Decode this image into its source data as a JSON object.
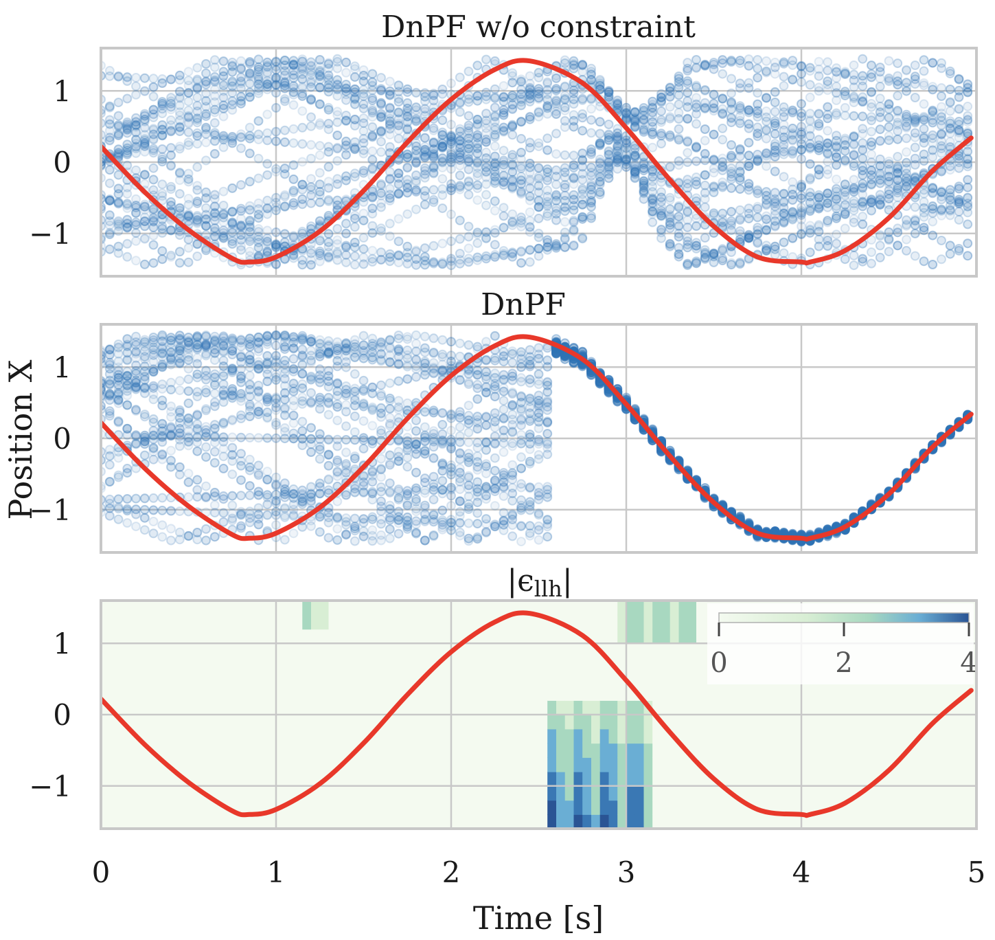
{
  "figure": {
    "xlabel": "Time [s]",
    "ylabel": "Position X"
  },
  "chart_data": [
    {
      "type": "scatter",
      "title": "DnPF w/o constraint",
      "xlim": [
        0,
        5
      ],
      "ylim": [
        -1.6,
        1.6
      ],
      "xticks": [
        0,
        1,
        2,
        3,
        4,
        5
      ],
      "yticks": [
        -1,
        0,
        1
      ],
      "ytick_labels": [
        "−1",
        "0",
        "1"
      ],
      "grid": true,
      "particles": {
        "color": "#2f73b5",
        "n_per_step": 30,
        "time_step": 0.05,
        "spread_x": 1.45,
        "behavior": "diffuse bouncing particles over the full range; weakly attracted to the true trajectory near t=3 and spreading again afterwards"
      },
      "series": [
        {
          "name": "true",
          "color": "#e8382a",
          "x": [
            0,
            0.25,
            0.5,
            0.75,
            0.85,
            1.0,
            1.25,
            1.5,
            1.75,
            2.0,
            2.25,
            2.45,
            2.75,
            3.0,
            3.25,
            3.5,
            3.75,
            4.0,
            4.05,
            4.25,
            4.5,
            4.75,
            4.97
          ],
          "y": [
            0.22,
            -0.42,
            -0.95,
            -1.35,
            -1.4,
            -1.33,
            -0.97,
            -0.4,
            0.28,
            0.88,
            1.3,
            1.42,
            1.11,
            0.48,
            -0.25,
            -0.9,
            -1.33,
            -1.4,
            -1.4,
            -1.24,
            -0.78,
            -0.12,
            0.34
          ]
        }
      ]
    },
    {
      "type": "scatter",
      "title": "DnPF",
      "xlim": [
        0,
        5
      ],
      "ylim": [
        -1.6,
        1.6
      ],
      "xticks": [
        0,
        1,
        2,
        3,
        4,
        5
      ],
      "yticks": [
        -1,
        0,
        1
      ],
      "ytick_labels": [
        "−1",
        "0",
        "1"
      ],
      "grid": true,
      "particles": {
        "color": "#2f73b5",
        "n_per_step": 30,
        "time_step": 0.05,
        "spread_x": 1.45,
        "behavior": "diffuse bouncing particles until about t=2.55, then collapse onto the true trajectory"
      },
      "series": [
        {
          "name": "true",
          "color": "#e8382a",
          "x": [
            0,
            0.25,
            0.5,
            0.75,
            0.85,
            1.0,
            1.25,
            1.5,
            1.75,
            2.0,
            2.25,
            2.45,
            2.75,
            3.0,
            3.25,
            3.5,
            3.75,
            4.0,
            4.05,
            4.25,
            4.5,
            4.75,
            4.97
          ],
          "y": [
            0.22,
            -0.42,
            -0.95,
            -1.35,
            -1.4,
            -1.33,
            -0.97,
            -0.4,
            0.28,
            0.88,
            1.3,
            1.42,
            1.11,
            0.48,
            -0.25,
            -0.9,
            -1.33,
            -1.4,
            -1.4,
            -1.24,
            -0.78,
            -0.12,
            0.34
          ]
        }
      ]
    },
    {
      "type": "heatmap",
      "title": "|ϵ",
      "title_subscript": "llh",
      "title_suffix": "|",
      "xlim": [
        0,
        5
      ],
      "ylim": [
        -1.6,
        1.6
      ],
      "xticks": [
        0,
        1,
        2,
        3,
        4,
        5
      ],
      "yticks": [
        -1,
        0,
        1
      ],
      "ytick_labels": [
        "−1",
        "0",
        "1"
      ],
      "grid": true,
      "colormap": [
        "#f4faf0",
        "#d8eed4",
        "#a8d8c0",
        "#6aaed4",
        "#3a78b4",
        "#2a5494"
      ],
      "colorbar": {
        "range": [
          0,
          4
        ],
        "ticks": [
          0,
          2,
          4
        ],
        "placement": "top-right"
      },
      "hot_regions": [
        {
          "x": [
            1.15,
            1.3
          ],
          "y": [
            1.2,
            1.6
          ],
          "value": 1.6
        },
        {
          "x": [
            2.55,
            3.15
          ],
          "y": [
            -1.6,
            0.1
          ],
          "value": 3.6
        },
        {
          "x": [
            2.95,
            3.4
          ],
          "y": [
            1.0,
            1.6
          ],
          "value": 2.0
        }
      ],
      "series": [
        {
          "name": "true",
          "color": "#e8382a",
          "x": [
            0,
            0.25,
            0.5,
            0.75,
            0.85,
            1.0,
            1.25,
            1.5,
            1.75,
            2.0,
            2.25,
            2.45,
            2.75,
            3.0,
            3.25,
            3.5,
            3.75,
            4.0,
            4.05,
            4.25,
            4.5,
            4.75,
            4.97
          ],
          "y": [
            0.22,
            -0.42,
            -0.95,
            -1.35,
            -1.4,
            -1.33,
            -0.97,
            -0.4,
            0.28,
            0.88,
            1.3,
            1.42,
            1.11,
            0.48,
            -0.25,
            -0.9,
            -1.33,
            -1.4,
            -1.4,
            -1.24,
            -0.78,
            -0.12,
            0.34
          ]
        }
      ]
    }
  ]
}
